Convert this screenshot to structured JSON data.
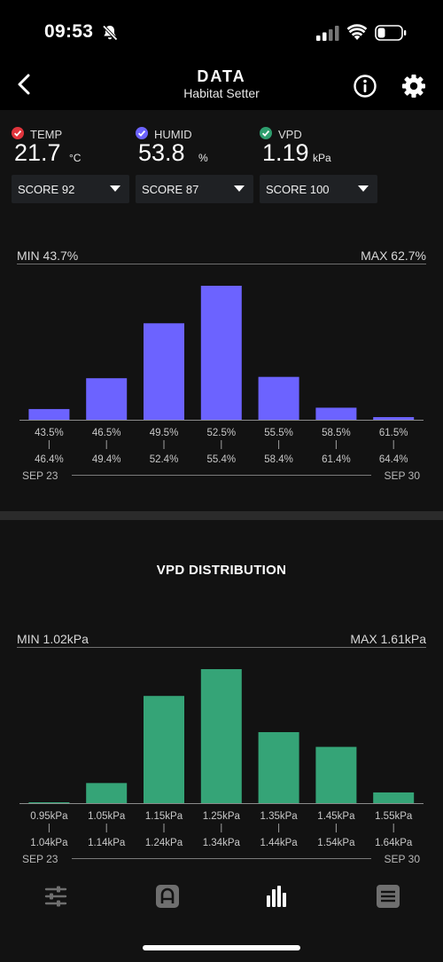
{
  "status": {
    "time": "09:53"
  },
  "header": {
    "title": "DATA",
    "subtitle": "Habitat Setter"
  },
  "sensors": [
    {
      "label": "TEMP",
      "value": "21.7",
      "unit": "°C",
      "score": "SCORE 92",
      "color": "#e0343c"
    },
    {
      "label": "HUMID",
      "value": "53.8",
      "unit": "%",
      "score": "SCORE 87",
      "color": "#6c63ff"
    },
    {
      "label": "VPD",
      "value": "1.19",
      "unit": "kPa",
      "score": "SCORE 100",
      "color": "#2e9e6e"
    }
  ],
  "humid_chart": {
    "min_label": "MIN 43.7%",
    "max_label": "MAX 62.7%",
    "date_start": "SEP 23",
    "date_end": "SEP 30",
    "color": "#6c63ff"
  },
  "vpd_chart": {
    "title": "VPD DISTRIBUTION",
    "min_label": "MIN 1.02kPa",
    "max_label": "MAX 1.61kPa",
    "date_start": "SEP 23",
    "date_end": "SEP 30",
    "color": "#35a477"
  },
  "chart_data": [
    {
      "type": "bar",
      "categories": [
        "43.5%–46.4%",
        "46.5%–49.4%",
        "49.5%–52.4%",
        "52.5%–55.4%",
        "55.5%–58.4%",
        "58.5%–61.4%",
        "61.5%–64.4%"
      ],
      "bins_low": [
        "43.5%",
        "46.5%",
        "49.5%",
        "52.5%",
        "55.5%",
        "58.5%",
        "61.5%"
      ],
      "bins_high": [
        "46.4%",
        "49.4%",
        "52.4%",
        "55.4%",
        "58.4%",
        "61.4%",
        "64.4%"
      ],
      "values": [
        8,
        31,
        72,
        100,
        32,
        9,
        2
      ],
      "ylim": [
        0,
        100
      ],
      "title": "",
      "xlabel": "",
      "ylabel": ""
    },
    {
      "type": "bar",
      "categories": [
        "0.95kPa–1.04kPa",
        "1.05kPa–1.14kPa",
        "1.15kPa–1.24kPa",
        "1.25kPa–1.34kPa",
        "1.35kPa–1.44kPa",
        "1.45kPa–1.54kPa",
        "1.55kPa–1.64kPa"
      ],
      "bins_low": [
        "0.95kPa",
        "1.05kPa",
        "1.15kPa",
        "1.25kPa",
        "1.35kPa",
        "1.45kPa",
        "1.55kPa"
      ],
      "bins_high": [
        "1.04kPa",
        "1.14kPa",
        "1.24kPa",
        "1.34kPa",
        "1.44kPa",
        "1.54kPa",
        "1.64kPa"
      ],
      "values": [
        0.5,
        15,
        80,
        100,
        53,
        42,
        8
      ],
      "ylim": [
        0,
        100
      ],
      "title": "VPD DISTRIBUTION",
      "xlabel": "",
      "ylabel": ""
    }
  ],
  "tabs": [
    {
      "icon": "sliders-icon"
    },
    {
      "icon": "habitat-icon"
    },
    {
      "icon": "bar-chart-icon",
      "active": true
    },
    {
      "icon": "list-icon"
    }
  ]
}
